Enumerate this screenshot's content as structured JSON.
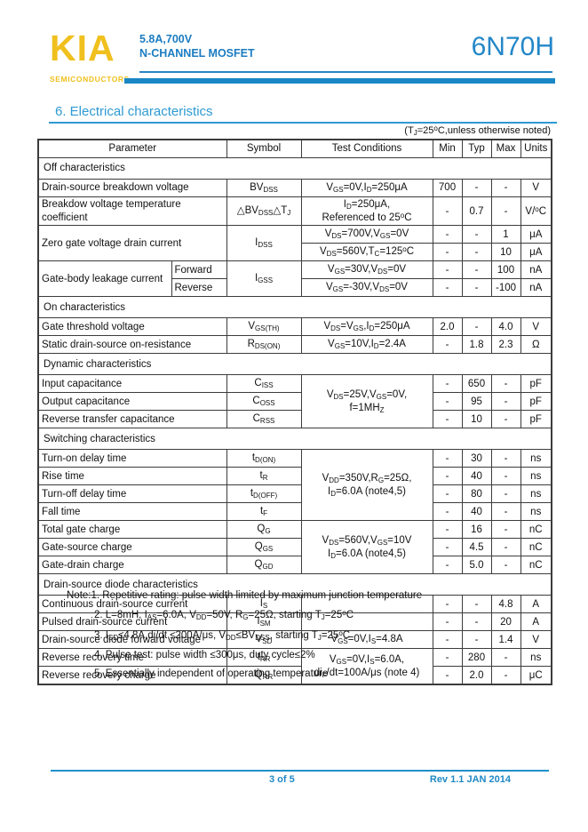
{
  "header": {
    "logo_text": "KIA",
    "logo_subtext": "SEMICONDUCTORS",
    "rating": "5.8A,700V",
    "device_type": "N-CHANNEL MOSFET",
    "part_number": "6N70H"
  },
  "section": {
    "heading": "6.  Electrical characteristics"
  },
  "table": {
    "condition_note": "(T~J~=25^o^C,unless otherwise noted)",
    "columns": [
      "Parameter",
      "Symbol",
      "Test Conditions",
      "Min",
      "Typ",
      "Max",
      "Units"
    ],
    "rows": [
      {
        "section": "Off characteristics"
      },
      {
        "cells": [
          {
            "t": "Drain-source breakdown voltage",
            "c": 2,
            "a": "l"
          },
          {
            "t": "BV~DSS~"
          },
          {
            "t": "V~GS~=0V,I~D~=250μA"
          },
          {
            "t": "700"
          },
          {
            "t": "-"
          },
          {
            "t": "-"
          },
          {
            "t": "V"
          }
        ]
      },
      {
        "cells": [
          {
            "t": "Breakdow voltage temperature coefficient",
            "c": 2,
            "a": "l"
          },
          {
            "t": "△BV~DSS~△T~J~"
          },
          {
            "t": "I~D~=250μA,\nReferenced to 25^o^C"
          },
          {
            "t": "-"
          },
          {
            "t": "0.7"
          },
          {
            "t": "-"
          },
          {
            "t": "V/^o^C"
          }
        ]
      },
      {
        "cells": [
          {
            "t": "Zero gate voltage drain current",
            "c": 2,
            "r": 2,
            "a": "l"
          },
          {
            "t": "I~DSS~",
            "r": 2
          },
          {
            "t": "V~DS~=700V,V~GS~=0V"
          },
          {
            "t": "-"
          },
          {
            "t": "-"
          },
          {
            "t": "1"
          },
          {
            "t": "μA"
          }
        ]
      },
      {
        "cells": [
          {
            "t": "V~DS~=560V,T~C~=125^o^C"
          },
          {
            "t": "-"
          },
          {
            "t": "-"
          },
          {
            "t": "10"
          },
          {
            "t": "μA"
          }
        ]
      },
      {
        "cells": [
          {
            "t": "Gate-body leakage current",
            "r": 2,
            "a": "l"
          },
          {
            "t": "Forward",
            "a": "l"
          },
          {
            "t": "I~GSS~",
            "r": 2
          },
          {
            "t": "V~GS~=30V,V~DS~=0V"
          },
          {
            "t": "-"
          },
          {
            "t": "-"
          },
          {
            "t": "100"
          },
          {
            "t": "nA"
          }
        ]
      },
      {
        "cells": [
          {
            "t": "Reverse",
            "a": "l"
          },
          {
            "t": "V~GS~=-30V,V~DS~=0V"
          },
          {
            "t": "-"
          },
          {
            "t": "-"
          },
          {
            "t": "-100"
          },
          {
            "t": "nA"
          }
        ]
      },
      {
        "section": "On characteristics"
      },
      {
        "cells": [
          {
            "t": "Gate threshold voltage",
            "c": 2,
            "a": "l"
          },
          {
            "t": "V~GS(TH)~"
          },
          {
            "t": "V~DS~=V~GS~,I~D~=250μA"
          },
          {
            "t": "2.0"
          },
          {
            "t": "-"
          },
          {
            "t": "4.0"
          },
          {
            "t": "V"
          }
        ]
      },
      {
        "cells": [
          {
            "t": "Static drain-source on-resistance",
            "c": 2,
            "a": "l"
          },
          {
            "t": "R~DS(ON)~"
          },
          {
            "t": "V~GS~=10V,I~D~=2.4A"
          },
          {
            "t": "-"
          },
          {
            "t": "1.8"
          },
          {
            "t": "2.3"
          },
          {
            "t": "Ω"
          }
        ]
      },
      {
        "section": "Dynamic characteristics"
      },
      {
        "cells": [
          {
            "t": "Input capacitance",
            "c": 2,
            "a": "l"
          },
          {
            "t": "C~ISS~"
          },
          {
            "t": "V~DS~=25V,V~GS~=0V,\nf=1MH~Z~",
            "r": 3
          },
          {
            "t": "-"
          },
          {
            "t": "650"
          },
          {
            "t": "-"
          },
          {
            "t": "pF"
          }
        ]
      },
      {
        "cells": [
          {
            "t": "Output capacitance",
            "c": 2,
            "a": "l"
          },
          {
            "t": "C~OSS~"
          },
          {
            "t": "-"
          },
          {
            "t": "95"
          },
          {
            "t": "-"
          },
          {
            "t": "pF"
          }
        ]
      },
      {
        "cells": [
          {
            "t": "Reverse transfer capacitance",
            "c": 2,
            "a": "l"
          },
          {
            "t": "C~RSS~"
          },
          {
            "t": "-"
          },
          {
            "t": "10"
          },
          {
            "t": "-"
          },
          {
            "t": "pF"
          }
        ]
      },
      {
        "section": "Switching characteristics"
      },
      {
        "cells": [
          {
            "t": "Turn-on delay time",
            "c": 2,
            "a": "l"
          },
          {
            "t": "t~D(ON)~"
          },
          {
            "t": "V~DD~=350V,R~G~=25Ω,\nI~D~=6.0A (note4,5)",
            "r": 4
          },
          {
            "t": "-"
          },
          {
            "t": "30"
          },
          {
            "t": "-"
          },
          {
            "t": "ns"
          }
        ]
      },
      {
        "cells": [
          {
            "t": "Rise time",
            "c": 2,
            "a": "l"
          },
          {
            "t": "t~R~"
          },
          {
            "t": "-"
          },
          {
            "t": "40"
          },
          {
            "t": "-"
          },
          {
            "t": "ns"
          }
        ]
      },
      {
        "cells": [
          {
            "t": "Turn-off delay time",
            "c": 2,
            "a": "l"
          },
          {
            "t": "t~D(OFF)~"
          },
          {
            "t": "-"
          },
          {
            "t": "80"
          },
          {
            "t": "-"
          },
          {
            "t": "ns"
          }
        ]
      },
      {
        "cells": [
          {
            "t": "Fall time",
            "c": 2,
            "a": "l"
          },
          {
            "t": "t~F~"
          },
          {
            "t": "-"
          },
          {
            "t": "40"
          },
          {
            "t": "-"
          },
          {
            "t": "ns"
          }
        ]
      },
      {
        "cells": [
          {
            "t": "Total gate charge",
            "c": 2,
            "a": "l"
          },
          {
            "t": "Q~G~"
          },
          {
            "t": "V~DS~=560V,V~GS~=10V\nI~D~=6.0A (note4,5)",
            "r": 3
          },
          {
            "t": "-"
          },
          {
            "t": "16"
          },
          {
            "t": "-"
          },
          {
            "t": "nC"
          }
        ]
      },
      {
        "cells": [
          {
            "t": "Gate-source charge",
            "c": 2,
            "a": "l"
          },
          {
            "t": "Q~GS~"
          },
          {
            "t": "-"
          },
          {
            "t": "4.5"
          },
          {
            "t": "-"
          },
          {
            "t": "nC"
          }
        ]
      },
      {
        "cells": [
          {
            "t": "Gate-drain charge",
            "c": 2,
            "a": "l"
          },
          {
            "t": "Q~GD~"
          },
          {
            "t": "-"
          },
          {
            "t": "5.0"
          },
          {
            "t": "-"
          },
          {
            "t": "nC"
          }
        ]
      },
      {
        "section": "Drain-source diode characteristics"
      },
      {
        "cells": [
          {
            "t": "Continuous drain-source current",
            "c": 2,
            "a": "l"
          },
          {
            "t": "I~S~"
          },
          {
            "t": ""
          },
          {
            "t": "-"
          },
          {
            "t": "-"
          },
          {
            "t": "4.8"
          },
          {
            "t": "A"
          }
        ]
      },
      {
        "cells": [
          {
            "t": "Pulsed drain-source current",
            "c": 2,
            "a": "l"
          },
          {
            "t": "I~SM~"
          },
          {
            "t": ""
          },
          {
            "t": "-"
          },
          {
            "t": "-"
          },
          {
            "t": "20"
          },
          {
            "t": "A"
          }
        ]
      },
      {
        "cells": [
          {
            "t": "Drain-source diode forward voltage",
            "c": 2,
            "a": "l"
          },
          {
            "t": "V~SD~"
          },
          {
            "t": "V~GS~=0V,I~S~=4.8A"
          },
          {
            "t": "-"
          },
          {
            "t": "-"
          },
          {
            "t": "1.4"
          },
          {
            "t": "V"
          }
        ]
      },
      {
        "cells": [
          {
            "t": "Reverse recovery time",
            "c": 2,
            "a": "l"
          },
          {
            "t": "t~RR~"
          },
          {
            "t": "V~GS~=0V,I~S~=6.0A,\ndi~F~/dt=100A/μs (note 4)",
            "r": 2
          },
          {
            "t": "-"
          },
          {
            "t": "280"
          },
          {
            "t": "-"
          },
          {
            "t": "ns"
          }
        ]
      },
      {
        "cells": [
          {
            "t": "Reverse recovery charge",
            "c": 2,
            "a": "l"
          },
          {
            "t": "Q~RR~"
          },
          {
            "t": "-"
          },
          {
            "t": "2.0"
          },
          {
            "t": "-"
          },
          {
            "t": "μC"
          }
        ]
      }
    ]
  },
  "notes": {
    "items": [
      "Note:1. Repetitive rating: pulse width limited by maximum junction temperature",
      "2. L=8mH, I~AS~=6.0A, V~DD~=50V, R~G~=25Ω, starting T~J~=25^o^C",
      "3. I~SD~≤4.8A,di/dt ≤200A/μs, V~DD~≤BV~DSS~, starting T~J~=25^o^C",
      "4. Pulse test: pulse width ≤300μs, duty cycle≤2%",
      "5. Essentially independent of operating temperature"
    ]
  },
  "footer": {
    "page": "3 of 5",
    "revision": "Rev 1.1 JAN 2014"
  },
  "colors": {
    "brand_blue": "#1b7cc0",
    "heading_blue": "#2e9ad2",
    "brand_yellow": "#f0c01e"
  }
}
